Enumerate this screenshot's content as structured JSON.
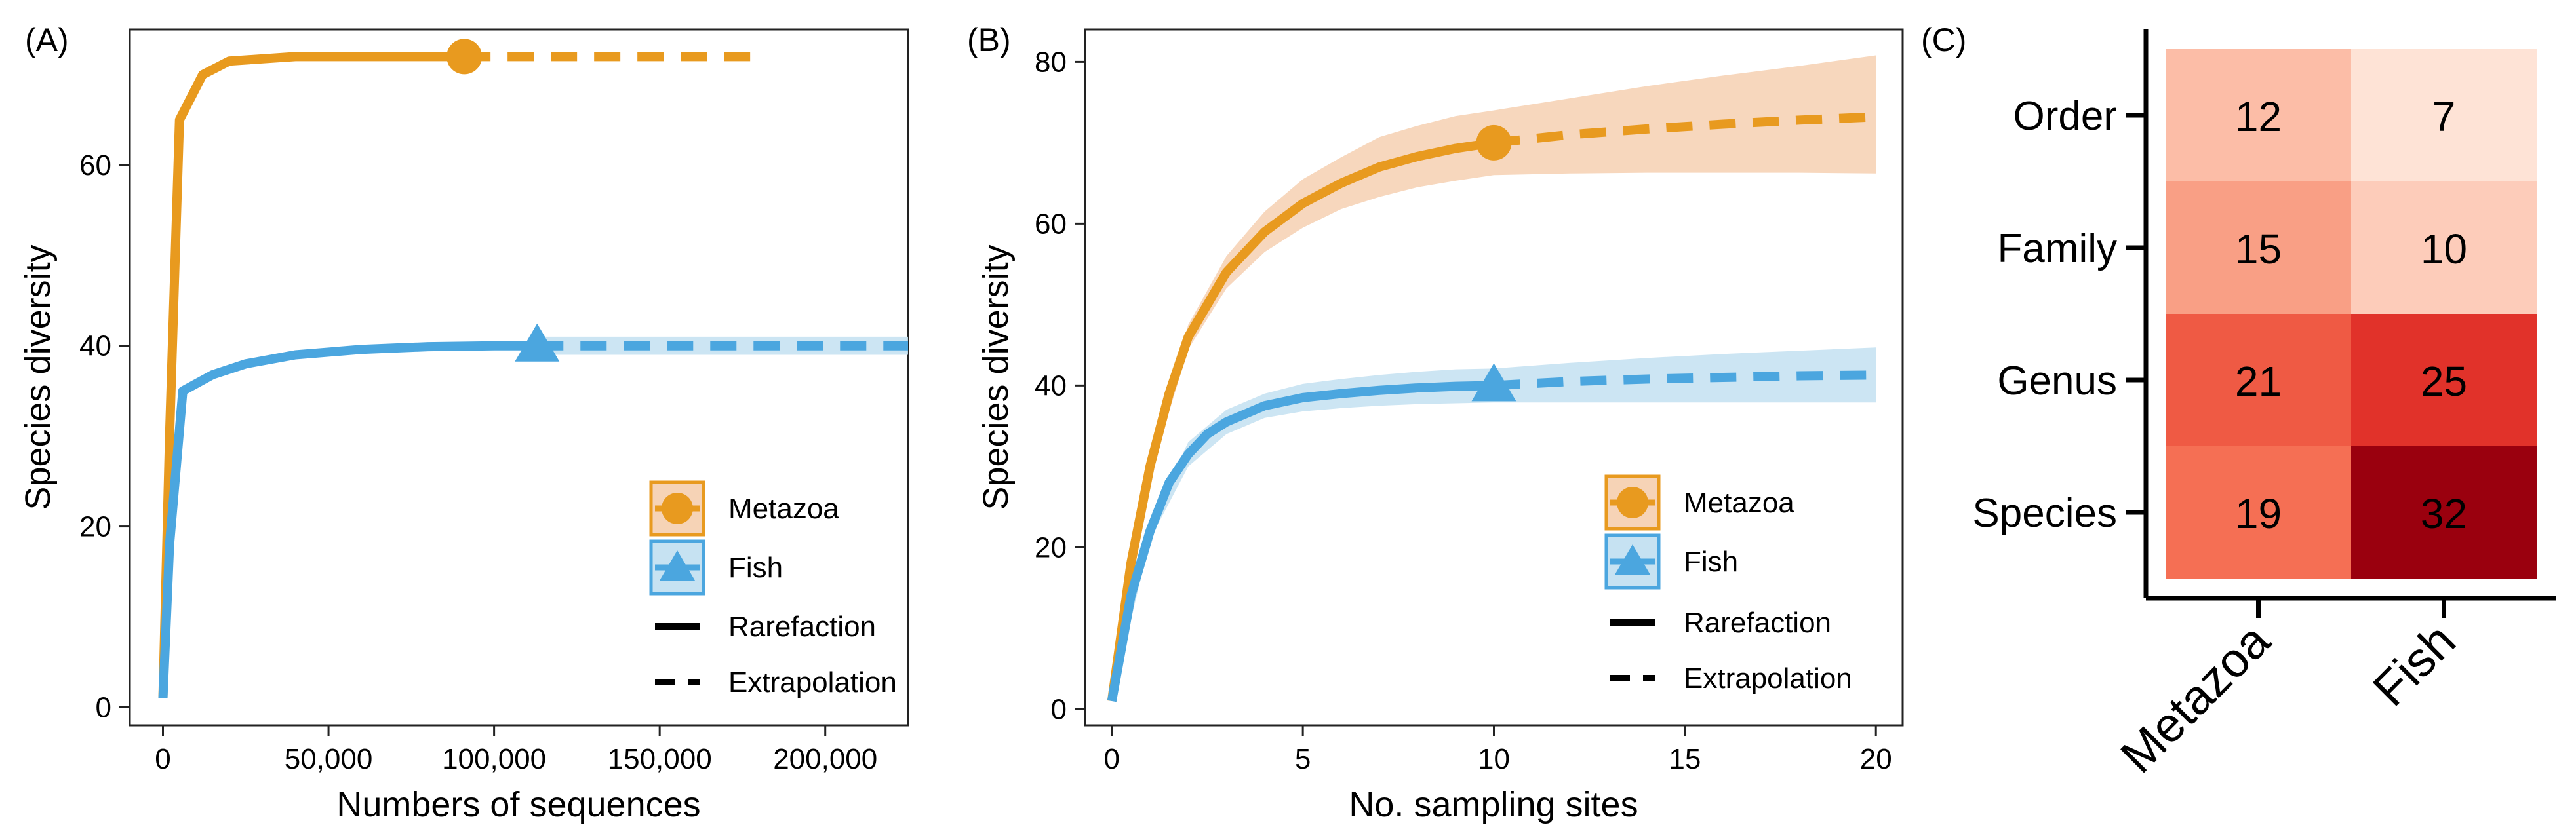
{
  "colors": {
    "metazoa": "#E89A1F",
    "fish": "#4BA6DF",
    "metazoa_band": "#F6D3B6",
    "fish_band": "#C6E2F2",
    "heat_low": "#FEE3D6",
    "heat_high": "#9A000E"
  },
  "chart_data": [
    {
      "panel_label": "(A)",
      "type": "line",
      "xlabel": "Numbers of sequences",
      "ylabel": "Species diversity",
      "xlim": [
        -10000,
        225000
      ],
      "ylim": [
        -2,
        75
      ],
      "xticks": [
        0,
        50000,
        100000,
        150000,
        200000
      ],
      "xtick_labels": [
        "0",
        "50,000",
        "100,000",
        "150,000",
        "200,000"
      ],
      "yticks": [
        0,
        20,
        40,
        60
      ],
      "ytick_labels": [
        "0",
        "20",
        "40",
        "60"
      ],
      "series": [
        {
          "name": "Metazoa",
          "marker": "circle",
          "rarefaction": {
            "x": [
              0,
              2000,
              5000,
              12000,
              20000,
              40000,
              60000,
              91000
            ],
            "y": [
              1,
              30,
              65,
              70,
              71.5,
              72,
              72,
              72
            ]
          },
          "extrapolation": {
            "x": [
              91000,
              120000,
              150000,
              182000
            ],
            "y": [
              72,
              72,
              72,
              72
            ]
          },
          "band": null,
          "observed": {
            "x": 91000,
            "y": 72
          }
        },
        {
          "name": "Fish",
          "marker": "triangle",
          "rarefaction": {
            "x": [
              0,
              2000,
              6000,
              15000,
              25000,
              40000,
              60000,
              80000,
              100000,
              113000
            ],
            "y": [
              1,
              18,
              35,
              36.8,
              38,
              39,
              39.6,
              39.9,
              40,
              40
            ]
          },
          "extrapolation": {
            "x": [
              113000,
              150000,
              190000,
              225000
            ],
            "y": [
              40,
              40,
              40,
              40
            ]
          },
          "band": {
            "x": [
              113000,
              225000
            ],
            "lower": [
              39,
              39
            ],
            "upper": [
              41,
              41
            ]
          },
          "observed": {
            "x": 113000,
            "y": 40
          }
        }
      ],
      "legend": {
        "position": "bottom-right",
        "entries": [
          "Metazoa",
          "Fish"
        ],
        "line_entries": [
          "Rarefaction",
          "Extrapolation"
        ]
      }
    },
    {
      "panel_label": "(B)",
      "type": "line",
      "xlabel": "No. sampling sites",
      "ylabel": "Species diversity",
      "xlim": [
        -0.7,
        20.7
      ],
      "ylim": [
        -2,
        84
      ],
      "xticks": [
        0,
        5,
        10,
        15,
        20
      ],
      "xtick_labels": [
        "0",
        "5",
        "10",
        "15",
        "20"
      ],
      "yticks": [
        0,
        20,
        40,
        60,
        80
      ],
      "ytick_labels": [
        "0",
        "20",
        "40",
        "60",
        "80"
      ],
      "series": [
        {
          "name": "Metazoa",
          "marker": "circle",
          "rarefaction": {
            "x": [
              0,
              0.5,
              1,
              1.5,
              2,
              3,
              4,
              5,
              6,
              7,
              8,
              9,
              10
            ],
            "y": [
              1,
              18,
              30,
              39,
              46,
              54,
              59,
              62.5,
              65,
              67,
              68.3,
              69.3,
              70
            ]
          },
          "extrapolation": {
            "x": [
              10,
              12,
              14,
              16,
              18,
              20
            ],
            "y": [
              70,
              71,
              71.7,
              72.3,
              72.8,
              73.2
            ]
          },
          "band": {
            "x": [
              0,
              1,
              2,
              3,
              4,
              5,
              6,
              7,
              8,
              9,
              10,
              12,
              14,
              16,
              18,
              20
            ],
            "lower": [
              1,
              29,
              44.5,
              52,
              56.5,
              59.5,
              61.8,
              63.3,
              64.5,
              65.3,
              66,
              66.2,
              66.3,
              66.3,
              66.3,
              66.2
            ],
            "upper": [
              1,
              31,
              47.5,
              56,
              61.5,
              65.5,
              68.2,
              70.7,
              72.1,
              73.3,
              74,
              75.5,
              77,
              78.3,
              79.5,
              80.8
            ]
          },
          "observed": {
            "x": 10,
            "y": 70
          }
        },
        {
          "name": "Fish",
          "marker": "triangle",
          "rarefaction": {
            "x": [
              0,
              0.5,
              1,
              1.5,
              2,
              2.5,
              3,
              4,
              5,
              6,
              7,
              8,
              9,
              10
            ],
            "y": [
              1,
              14,
              22,
              28,
              31.5,
              34,
              35.5,
              37.5,
              38.5,
              39,
              39.4,
              39.7,
              39.9,
              40
            ]
          },
          "extrapolation": {
            "x": [
              10,
              12,
              14,
              16,
              18,
              20
            ],
            "y": [
              40,
              40.5,
              40.8,
              41,
              41.2,
              41.3
            ]
          },
          "band": {
            "x": [
              0,
              1,
              2,
              3,
              4,
              5,
              6,
              7,
              8,
              9,
              10,
              12,
              14,
              16,
              18,
              20
            ],
            "lower": [
              1,
              21,
              30,
              34,
              36,
              36.8,
              37.2,
              37.5,
              37.7,
              37.8,
              37.9,
              37.9,
              37.9,
              37.9,
              37.9,
              37.9
            ],
            "upper": [
              1,
              23,
              33,
              37,
              39,
              40.2,
              40.8,
              41.3,
              41.7,
              42,
              42.1,
              42.8,
              43.4,
              43.9,
              44.3,
              44.7
            ]
          },
          "observed": {
            "x": 10,
            "y": 40
          }
        }
      ],
      "legend": {
        "position": "bottom-right",
        "entries": [
          "Metazoa",
          "Fish"
        ],
        "line_entries": [
          "Rarefaction",
          "Extrapolation"
        ]
      }
    },
    {
      "panel_label": "(C)",
      "type": "heatmap",
      "rows": [
        "Order",
        "Family",
        "Genus",
        "Species"
      ],
      "columns": [
        "Metazoa",
        "Fish"
      ],
      "values": [
        [
          12,
          7
        ],
        [
          15,
          10
        ],
        [
          21,
          25
        ],
        [
          19,
          32
        ]
      ],
      "value_range": [
        7,
        32
      ]
    }
  ]
}
